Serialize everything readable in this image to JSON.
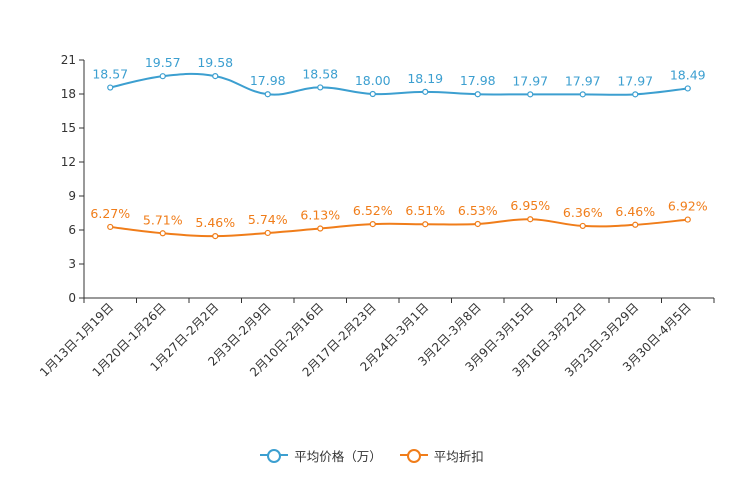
{
  "chart_data": {
    "type": "line",
    "categories": [
      "1月13日-1月19日",
      "1月20日-1月26日",
      "1月27日-2月2日",
      "2月3日-2月9日",
      "2月10日-2月16日",
      "2月17日-2月23日",
      "2月24日-3月1日",
      "3月2日-3月8日",
      "3月9日-3月15日",
      "3月16日-3月22日",
      "3月23日-3月29日",
      "3月30日-4月5日"
    ],
    "series": [
      {
        "name": "平均价格（万）",
        "color": "#3c9fd0",
        "values": [
          18.57,
          19.57,
          19.58,
          17.98,
          18.58,
          18.0,
          18.19,
          17.98,
          17.97,
          17.97,
          17.97,
          18.49
        ],
        "labels": [
          "18.57",
          "19.57",
          "19.58",
          "17.98",
          "18.58",
          "18.00",
          "18.19",
          "17.98",
          "17.97",
          "17.97",
          "17.97",
          "18.49"
        ]
      },
      {
        "name": "平均折扣",
        "color": "#f07d1a",
        "values": [
          6.27,
          5.71,
          5.46,
          5.74,
          6.13,
          6.52,
          6.51,
          6.53,
          6.95,
          6.36,
          6.46,
          6.92
        ],
        "labels": [
          "6.27%",
          "5.71%",
          "5.46%",
          "5.74%",
          "6.13%",
          "6.52%",
          "6.51%",
          "6.53%",
          "6.95%",
          "6.36%",
          "6.46%",
          "6.92%"
        ]
      }
    ],
    "y_ticks": [
      "0",
      "3",
      "6",
      "9",
      "12",
      "15",
      "18",
      "21"
    ],
    "ylim": [
      0,
      21
    ],
    "legend_position": "bottom"
  }
}
